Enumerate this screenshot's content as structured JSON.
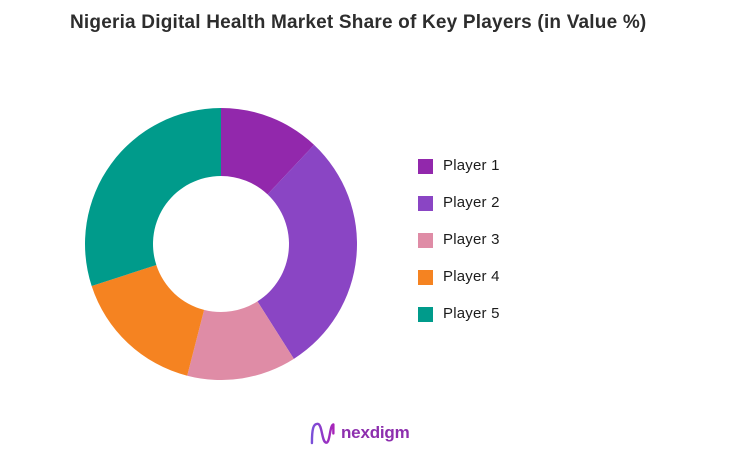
{
  "title": "Nigeria Digital Health Market Share of Key Players (in Value %)",
  "chart_data": {
    "type": "pie",
    "subtype": "donut",
    "title": "Nigeria Digital Health Market Share of Key Players (in Value %)",
    "unit": "Value %",
    "start_angle_deg_from_top": 0,
    "direction": "clockwise",
    "inner_radius_ratio": 0.5,
    "legend_position": "right",
    "labels_shown": false,
    "segments": [
      {
        "label": "Player 1",
        "value": 12,
        "color": "#9228ac"
      },
      {
        "label": "Player 2",
        "value": 29,
        "color": "#8a45c4"
      },
      {
        "label": "Player 3",
        "value": 13,
        "color": "#df8ca6"
      },
      {
        "label": "Player 4",
        "value": 16,
        "color": "#f58321"
      },
      {
        "label": "Player 5",
        "value": 30,
        "color": "#009b8b"
      }
    ]
  },
  "footer": {
    "logo_text": "nexdigm",
    "logo_icon": "nexdigm-n-icon",
    "logo_text_color": "#8d2fae",
    "logo_icon_gradient_start": "#7a50d8",
    "logo_icon_gradient_end": "#a724b8"
  },
  "colors": {
    "background": "#ffffff",
    "title_text": "#2d2d2d",
    "legend_text": "#1c1c1c"
  }
}
